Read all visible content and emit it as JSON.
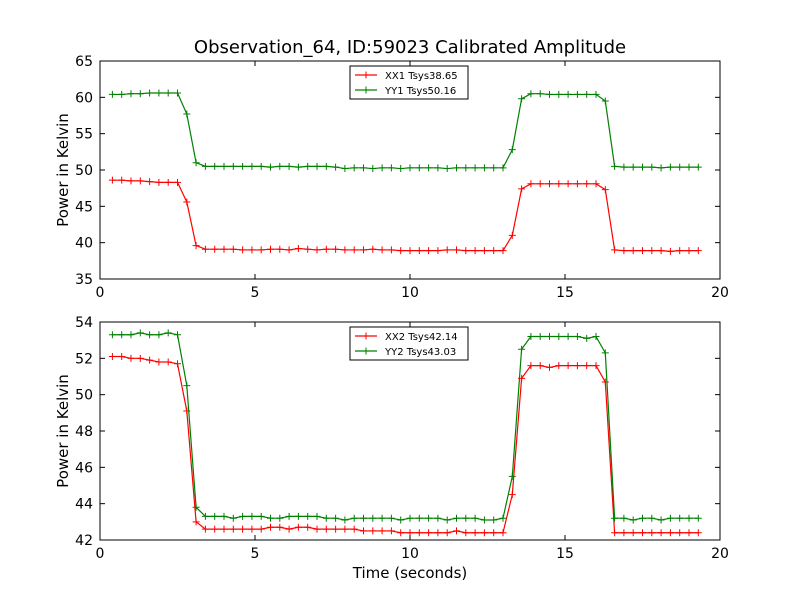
{
  "figure": {
    "title": "Observation_64, ID:59023 Calibrated Amplitude",
    "xlabel": "Time (seconds)"
  },
  "chart_data": [
    {
      "type": "line",
      "title": "Observation_64, ID:59023 Calibrated Amplitude",
      "xlabel": "",
      "ylabel": "Power in Kelvin",
      "xlim": [
        0,
        20
      ],
      "ylim": [
        35,
        65
      ],
      "xticks": [
        0,
        5,
        10,
        15,
        20
      ],
      "yticks": [
        35,
        40,
        45,
        50,
        55,
        60,
        65
      ],
      "grid": false,
      "legend_position": "top-center",
      "x": [
        0.4,
        0.7,
        1.0,
        1.3,
        1.6,
        1.9,
        2.2,
        2.5,
        2.8,
        3.1,
        3.4,
        3.7,
        4.0,
        4.3,
        4.6,
        4.9,
        5.2,
        5.5,
        5.8,
        6.1,
        6.4,
        6.7,
        7.0,
        7.3,
        7.6,
        7.9,
        8.2,
        8.5,
        8.8,
        9.1,
        9.4,
        9.7,
        10.0,
        10.3,
        10.6,
        10.9,
        11.2,
        11.5,
        11.8,
        12.1,
        12.4,
        12.7,
        13.0,
        13.3,
        13.6,
        13.9,
        14.2,
        14.5,
        14.8,
        15.1,
        15.4,
        15.7,
        16.0,
        16.3,
        16.6,
        16.9,
        17.2,
        17.5,
        17.8,
        18.1,
        18.4,
        18.7,
        19.0,
        19.3
      ],
      "series": [
        {
          "name": "XX1 Tsys38.65",
          "color": "#ff0000",
          "values": [
            48.6,
            48.6,
            48.5,
            48.5,
            48.4,
            48.3,
            48.3,
            48.3,
            45.6,
            39.6,
            39.1,
            39.1,
            39.1,
            39.1,
            39.0,
            39.0,
            39.0,
            39.1,
            39.1,
            39.0,
            39.2,
            39.1,
            39.0,
            39.1,
            39.1,
            39.0,
            39.0,
            39.0,
            39.1,
            39.0,
            39.0,
            38.9,
            38.9,
            38.9,
            38.9,
            38.9,
            39.0,
            39.0,
            38.9,
            38.9,
            38.9,
            38.9,
            38.9,
            41.0,
            47.4,
            48.1,
            48.1,
            48.1,
            48.1,
            48.1,
            48.1,
            48.1,
            48.1,
            47.3,
            39.0,
            38.9,
            38.9,
            38.9,
            38.9,
            38.9,
            38.8,
            38.9,
            38.9,
            38.9
          ]
        },
        {
          "name": "YY1 Tsys50.16",
          "color": "#008000",
          "values": [
            60.4,
            60.4,
            60.5,
            60.5,
            60.6,
            60.6,
            60.6,
            60.6,
            57.7,
            51.0,
            50.5,
            50.5,
            50.5,
            50.5,
            50.5,
            50.5,
            50.5,
            50.4,
            50.5,
            50.5,
            50.4,
            50.5,
            50.5,
            50.5,
            50.4,
            50.2,
            50.3,
            50.3,
            50.2,
            50.3,
            50.3,
            50.2,
            50.3,
            50.3,
            50.3,
            50.3,
            50.2,
            50.3,
            50.3,
            50.3,
            50.3,
            50.3,
            50.3,
            52.8,
            59.8,
            60.5,
            60.5,
            60.4,
            60.4,
            60.4,
            60.4,
            60.4,
            60.4,
            59.5,
            50.5,
            50.4,
            50.4,
            50.4,
            50.4,
            50.3,
            50.4,
            50.4,
            50.4,
            50.4
          ]
        }
      ]
    },
    {
      "type": "line",
      "title": "",
      "xlabel": "Time (seconds)",
      "ylabel": "Power in Kelvin",
      "xlim": [
        0,
        20
      ],
      "ylim": [
        42,
        54
      ],
      "xticks": [
        0,
        5,
        10,
        15,
        20
      ],
      "yticks": [
        42,
        44,
        46,
        48,
        50,
        52,
        54
      ],
      "grid": false,
      "legend_position": "top-center",
      "x": [
        0.4,
        0.7,
        1.0,
        1.3,
        1.6,
        1.9,
        2.2,
        2.5,
        2.8,
        3.1,
        3.4,
        3.7,
        4.0,
        4.3,
        4.6,
        4.9,
        5.2,
        5.5,
        5.8,
        6.1,
        6.4,
        6.7,
        7.0,
        7.3,
        7.6,
        7.9,
        8.2,
        8.5,
        8.8,
        9.1,
        9.4,
        9.7,
        10.0,
        10.3,
        10.6,
        10.9,
        11.2,
        11.5,
        11.8,
        12.1,
        12.4,
        12.7,
        13.0,
        13.3,
        13.6,
        13.9,
        14.2,
        14.5,
        14.8,
        15.1,
        15.4,
        15.7,
        16.0,
        16.3,
        16.6,
        16.9,
        17.2,
        17.5,
        17.8,
        18.1,
        18.4,
        18.7,
        19.0,
        19.3
      ],
      "series": [
        {
          "name": "XX2 Tsys42.14",
          "color": "#ff0000",
          "values": [
            52.1,
            52.1,
            52.0,
            52.0,
            51.9,
            51.8,
            51.8,
            51.7,
            49.1,
            43.0,
            42.6,
            42.6,
            42.6,
            42.6,
            42.6,
            42.6,
            42.6,
            42.7,
            42.7,
            42.6,
            42.7,
            42.7,
            42.6,
            42.6,
            42.6,
            42.6,
            42.6,
            42.5,
            42.5,
            42.5,
            42.5,
            42.4,
            42.4,
            42.4,
            42.4,
            42.4,
            42.4,
            42.5,
            42.4,
            42.4,
            42.4,
            42.4,
            42.4,
            44.5,
            50.9,
            51.6,
            51.6,
            51.5,
            51.6,
            51.6,
            51.6,
            51.6,
            51.6,
            50.7,
            42.4,
            42.4,
            42.4,
            42.4,
            42.4,
            42.4,
            42.4,
            42.4,
            42.4,
            42.4
          ]
        },
        {
          "name": "YY2 Tsys43.03",
          "color": "#008000",
          "values": [
            53.3,
            53.3,
            53.3,
            53.4,
            53.3,
            53.3,
            53.4,
            53.3,
            50.5,
            43.8,
            43.3,
            43.3,
            43.3,
            43.2,
            43.3,
            43.3,
            43.3,
            43.2,
            43.2,
            43.3,
            43.3,
            43.3,
            43.3,
            43.2,
            43.2,
            43.1,
            43.2,
            43.2,
            43.2,
            43.2,
            43.2,
            43.1,
            43.2,
            43.2,
            43.2,
            43.2,
            43.1,
            43.2,
            43.2,
            43.2,
            43.1,
            43.1,
            43.2,
            45.5,
            52.5,
            53.2,
            53.2,
            53.2,
            53.2,
            53.2,
            53.2,
            53.1,
            53.2,
            52.3,
            43.2,
            43.2,
            43.1,
            43.2,
            43.2,
            43.1,
            43.2,
            43.2,
            43.2,
            43.2
          ]
        }
      ]
    }
  ]
}
